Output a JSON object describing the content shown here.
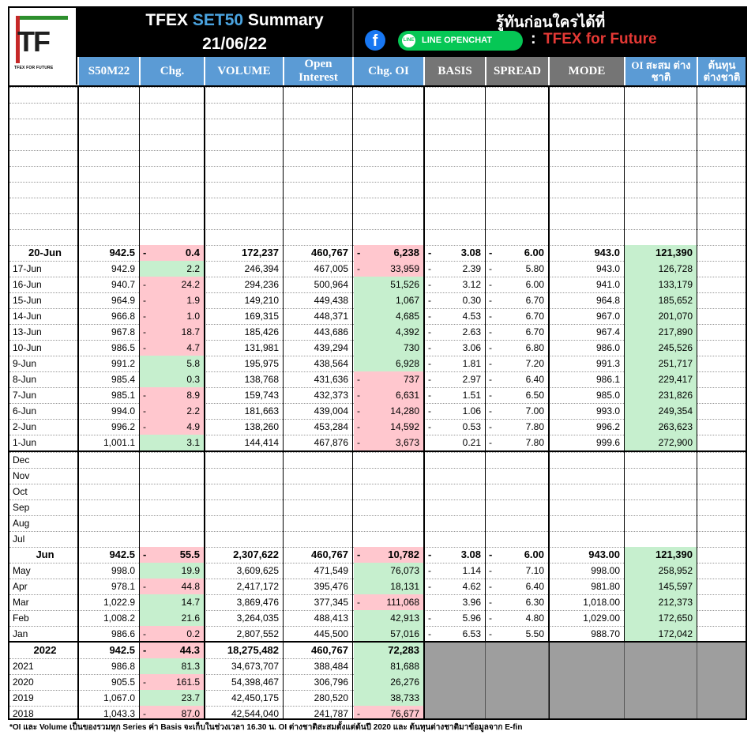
{
  "header": {
    "title_prefix": "TFEX",
    "title_accent": "SET50",
    "title_suffix": "Summary",
    "date": "21/06/22",
    "tagline": "รู้ทันก่อนใครได้ที่",
    "facebook_glyph": "f",
    "line_badge": "LINE OPENCHAT",
    "line_icon_text": "LINE",
    "colon": ":",
    "brand": "TFEX for Future",
    "logo_text": "TF",
    "logo_sub": "TFEX FOR FUTURE"
  },
  "columns": [
    "S50M22",
    "Chg.",
    "VOLUME",
    "Open Interest",
    "Chg. OI",
    "BASIS",
    "SPREAD",
    "MODE",
    "OI สะสม ต่างชาติ",
    "ต้นทุน ต่างชาติ"
  ],
  "colors": {
    "blue_header": "#5b9bd5",
    "grey_header": "#757575",
    "positive": "#c6efce",
    "negative": "#ffc7ce",
    "brand_red": "#e53935"
  },
  "daily": [
    {
      "label": "20-Jun",
      "price": "942.5",
      "chg": "0.4",
      "chg_dash": "-",
      "chg_sign": "neg",
      "volume": "172,237",
      "oi": "460,767",
      "chgoi": "6,238",
      "chgoi_dash": "-",
      "chgoi_sign": "neg",
      "basis": "3.08",
      "basis_dash": "-",
      "spread": "6.00",
      "spread_dash": "-",
      "mode": "943.0",
      "foreign_oi": "121,390",
      "bold": true
    },
    {
      "label": "17-Jun",
      "price": "942.9",
      "chg": "2.2",
      "chg_dash": "",
      "chg_sign": "pos",
      "volume": "246,394",
      "oi": "467,005",
      "chgoi": "33,959",
      "chgoi_dash": "-",
      "chgoi_sign": "neg",
      "basis": "2.39",
      "basis_dash": "-",
      "spread": "5.80",
      "spread_dash": "-",
      "mode": "943.0",
      "foreign_oi": "126,728",
      "bold": false
    },
    {
      "label": "16-Jun",
      "price": "940.7",
      "chg": "24.2",
      "chg_dash": "-",
      "chg_sign": "neg",
      "volume": "294,236",
      "oi": "500,964",
      "chgoi": "51,526",
      "chgoi_dash": "",
      "chgoi_sign": "pos",
      "basis": "3.12",
      "basis_dash": "-",
      "spread": "6.00",
      "spread_dash": "-",
      "mode": "941.0",
      "foreign_oi": "133,179",
      "bold": false
    },
    {
      "label": "15-Jun",
      "price": "964.9",
      "chg": "1.9",
      "chg_dash": "-",
      "chg_sign": "neg",
      "volume": "149,210",
      "oi": "449,438",
      "chgoi": "1,067",
      "chgoi_dash": "",
      "chgoi_sign": "pos",
      "basis": "0.30",
      "basis_dash": "-",
      "spread": "6.70",
      "spread_dash": "-",
      "mode": "964.8",
      "foreign_oi": "185,652",
      "bold": false
    },
    {
      "label": "14-Jun",
      "price": "966.8",
      "chg": "1.0",
      "chg_dash": "-",
      "chg_sign": "neg",
      "volume": "169,315",
      "oi": "448,371",
      "chgoi": "4,685",
      "chgoi_dash": "",
      "chgoi_sign": "pos",
      "basis": "4.53",
      "basis_dash": "-",
      "spread": "6.70",
      "spread_dash": "-",
      "mode": "967.0",
      "foreign_oi": "201,070",
      "bold": false
    },
    {
      "label": "13-Jun",
      "price": "967.8",
      "chg": "18.7",
      "chg_dash": "-",
      "chg_sign": "neg",
      "volume": "185,426",
      "oi": "443,686",
      "chgoi": "4,392",
      "chgoi_dash": "",
      "chgoi_sign": "pos",
      "basis": "2.63",
      "basis_dash": "-",
      "spread": "6.70",
      "spread_dash": "-",
      "mode": "967.4",
      "foreign_oi": "217,890",
      "bold": false
    },
    {
      "label": "10-Jun",
      "price": "986.5",
      "chg": "4.7",
      "chg_dash": "-",
      "chg_sign": "neg",
      "volume": "131,981",
      "oi": "439,294",
      "chgoi": "730",
      "chgoi_dash": "",
      "chgoi_sign": "pos",
      "basis": "3.06",
      "basis_dash": "-",
      "spread": "6.80",
      "spread_dash": "-",
      "mode": "986.0",
      "foreign_oi": "245,526",
      "bold": false
    },
    {
      "label": "9-Jun",
      "price": "991.2",
      "chg": "5.8",
      "chg_dash": "",
      "chg_sign": "pos",
      "volume": "195,975",
      "oi": "438,564",
      "chgoi": "6,928",
      "chgoi_dash": "",
      "chgoi_sign": "pos",
      "basis": "1.81",
      "basis_dash": "-",
      "spread": "7.20",
      "spread_dash": "-",
      "mode": "991.3",
      "foreign_oi": "251,717",
      "bold": false
    },
    {
      "label": "8-Jun",
      "price": "985.4",
      "chg": "0.3",
      "chg_dash": "",
      "chg_sign": "pos",
      "volume": "138,768",
      "oi": "431,636",
      "chgoi": "737",
      "chgoi_dash": "-",
      "chgoi_sign": "neg",
      "basis": "2.97",
      "basis_dash": "-",
      "spread": "6.40",
      "spread_dash": "-",
      "mode": "986.1",
      "foreign_oi": "229,417",
      "bold": false
    },
    {
      "label": "7-Jun",
      "price": "985.1",
      "chg": "8.9",
      "chg_dash": "-",
      "chg_sign": "neg",
      "volume": "159,743",
      "oi": "432,373",
      "chgoi": "6,631",
      "chgoi_dash": "-",
      "chgoi_sign": "neg",
      "basis": "1.51",
      "basis_dash": "-",
      "spread": "6.50",
      "spread_dash": "-",
      "mode": "985.0",
      "foreign_oi": "231,826",
      "bold": false
    },
    {
      "label": "6-Jun",
      "price": "994.0",
      "chg": "2.2",
      "chg_dash": "-",
      "chg_sign": "neg",
      "volume": "181,663",
      "oi": "439,004",
      "chgoi": "14,280",
      "chgoi_dash": "-",
      "chgoi_sign": "neg",
      "basis": "1.06",
      "basis_dash": "-",
      "spread": "7.00",
      "spread_dash": "-",
      "mode": "993.0",
      "foreign_oi": "249,354",
      "bold": false
    },
    {
      "label": "2-Jun",
      "price": "996.2",
      "chg": "4.9",
      "chg_dash": "-",
      "chg_sign": "neg",
      "volume": "138,260",
      "oi": "453,284",
      "chgoi": "14,592",
      "chgoi_dash": "-",
      "chgoi_sign": "neg",
      "basis": "0.53",
      "basis_dash": "-",
      "spread": "7.80",
      "spread_dash": "-",
      "mode": "996.2",
      "foreign_oi": "263,623",
      "bold": false
    },
    {
      "label": "1-Jun",
      "price": "1,001.1",
      "chg": "3.1",
      "chg_dash": "",
      "chg_sign": "pos",
      "volume": "144,414",
      "oi": "467,876",
      "chgoi": "3,673",
      "chgoi_dash": "-",
      "chgoi_sign": "neg",
      "basis": "0.21",
      "basis_dash": "",
      "spread": "7.80",
      "spread_dash": "-",
      "mode": "999.6",
      "foreign_oi": "272,900",
      "bold": false
    }
  ],
  "empty_months": [
    "Dec",
    "Nov",
    "Oct",
    "Sep",
    "Aug",
    "Jul"
  ],
  "monthly": [
    {
      "label": "Jun",
      "price": "942.5",
      "chg": "55.5",
      "chg_dash": "-",
      "chg_sign": "neg",
      "volume": "2,307,622",
      "oi": "460,767",
      "chgoi": "10,782",
      "chgoi_dash": "-",
      "chgoi_sign": "neg",
      "basis": "3.08",
      "basis_dash": "-",
      "spread": "6.00",
      "spread_dash": "-",
      "mode": "943.00",
      "foreign_oi": "121,390",
      "bold": true
    },
    {
      "label": "May",
      "price": "998.0",
      "chg": "19.9",
      "chg_dash": "",
      "chg_sign": "pos",
      "volume": "3,609,625",
      "oi": "471,549",
      "chgoi": "76,073",
      "chgoi_dash": "",
      "chgoi_sign": "pos",
      "basis": "1.14",
      "basis_dash": "-",
      "spread": "7.10",
      "spread_dash": "-",
      "mode": "998.00",
      "foreign_oi": "258,952",
      "bold": false
    },
    {
      "label": "Apr",
      "price": "978.1",
      "chg": "44.8",
      "chg_dash": "-",
      "chg_sign": "neg",
      "volume": "2,417,172",
      "oi": "395,476",
      "chgoi": "18,131",
      "chgoi_dash": "",
      "chgoi_sign": "pos",
      "basis": "4.62",
      "basis_dash": "-",
      "spread": "6.40",
      "spread_dash": "-",
      "mode": "981.80",
      "foreign_oi": "145,597",
      "bold": false
    },
    {
      "label": "Mar",
      "price": "1,022.9",
      "chg": "14.7",
      "chg_dash": "",
      "chg_sign": "pos",
      "volume": "3,869,476",
      "oi": "377,345",
      "chgoi": "111,068",
      "chgoi_dash": "-",
      "chgoi_sign": "neg",
      "basis": "3.96",
      "basis_dash": "",
      "spread": "6.30",
      "spread_dash": "-",
      "mode": "1,018.00",
      "foreign_oi": "212,373",
      "bold": false
    },
    {
      "label": "Feb",
      "price": "1,008.2",
      "chg": "21.6",
      "chg_dash": "",
      "chg_sign": "pos",
      "volume": "3,264,035",
      "oi": "488,413",
      "chgoi": "42,913",
      "chgoi_dash": "",
      "chgoi_sign": "pos",
      "basis": "5.96",
      "basis_dash": "-",
      "spread": "4.80",
      "spread_dash": "-",
      "mode": "1,029.00",
      "foreign_oi": "172,650",
      "bold": false
    },
    {
      "label": "Jan",
      "price": "986.6",
      "chg": "0.2",
      "chg_dash": "-",
      "chg_sign": "neg",
      "volume": "2,807,552",
      "oi": "445,500",
      "chgoi": "57,016",
      "chgoi_dash": "",
      "chgoi_sign": "pos",
      "basis": "6.53",
      "basis_dash": "-",
      "spread": "5.50",
      "spread_dash": "-",
      "mode": "988.70",
      "foreign_oi": "172,042",
      "bold": false
    }
  ],
  "yearly": [
    {
      "label": "2022",
      "price": "942.5",
      "chg": "44.3",
      "chg_dash": "-",
      "chg_sign": "neg",
      "volume": "18,275,482",
      "oi": "460,767",
      "chgoi": "72,283",
      "chgoi_dash": "",
      "chgoi_sign": "pos",
      "bold": true
    },
    {
      "label": "2021",
      "price": "986.8",
      "chg": "81.3",
      "chg_dash": "",
      "chg_sign": "pos",
      "volume": "34,673,707",
      "oi": "388,484",
      "chgoi": "81,688",
      "chgoi_dash": "",
      "chgoi_sign": "pos",
      "bold": false
    },
    {
      "label": "2020",
      "price": "905.5",
      "chg": "161.5",
      "chg_dash": "-",
      "chg_sign": "neg",
      "volume": "54,398,467",
      "oi": "306,796",
      "chgoi": "26,276",
      "chgoi_dash": "",
      "chgoi_sign": "pos",
      "bold": false
    },
    {
      "label": "2019",
      "price": "1,067.0",
      "chg": "23.7",
      "chg_dash": "",
      "chg_sign": "pos",
      "volume": "42,450,175",
      "oi": "280,520",
      "chgoi": "38,733",
      "chgoi_dash": "",
      "chgoi_sign": "pos",
      "bold": false
    },
    {
      "label": "2018",
      "price": "1,043.3",
      "chg": "87.0",
      "chg_dash": "-",
      "chg_sign": "neg",
      "volume": "42,544,040",
      "oi": "241,787",
      "chgoi": "76,677",
      "chgoi_dash": "-",
      "chgoi_sign": "neg",
      "bold": false
    }
  ],
  "footnote": "*OI และ Volume เป็นของรวมทุก Series ค่า Basis จะเก็บในช่วงเวลา 16.30 น. OI ต่างชาติสะสมตั้งแต่ต้นปี 2020 และ ต้นทุนต่างชาติมาข้อมูลจาก E-fin"
}
